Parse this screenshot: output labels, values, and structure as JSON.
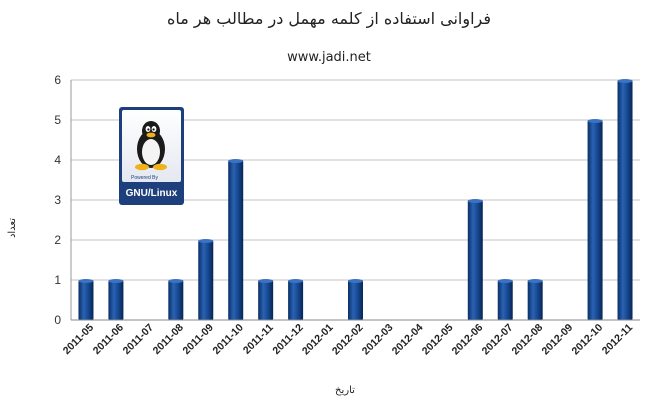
{
  "chart_data": {
    "type": "bar",
    "title": "فراوانی استفاده از کلمه مهمل در مطالب هر ماه",
    "subtitle": "www.jadi.net",
    "xlabel": "تاریخ",
    "ylabel": "تعداد",
    "ylim": [
      0,
      6
    ],
    "yticks": [
      "0",
      "1",
      "2",
      "3",
      "4",
      "5",
      "6"
    ],
    "grid": true,
    "categories": [
      "2011-05",
      "2011-06",
      "2011-07",
      "2011-08",
      "2011-09",
      "2011-10",
      "2011-11",
      "2011-12",
      "2012-01",
      "2012-02",
      "2012-03",
      "2012-04",
      "2012-05",
      "2012-06",
      "2012-07",
      "2012-08",
      "2012-09",
      "2012-10",
      "2012-11"
    ],
    "values": [
      1,
      1,
      0,
      1,
      2,
      4,
      1,
      1,
      0,
      1,
      0,
      0,
      0,
      3,
      1,
      1,
      0,
      5,
      6
    ],
    "bar_color": "#0d3f86"
  },
  "badge": {
    "powered_by": "Powered By",
    "label": "GNU/Linux",
    "icon": "tux-penguin-icon"
  }
}
